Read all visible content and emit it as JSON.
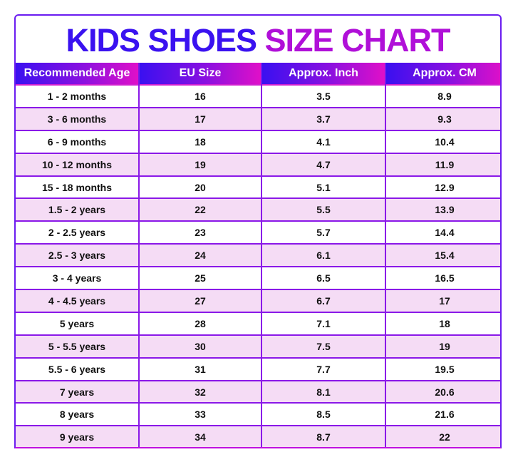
{
  "chart_data": {
    "type": "table",
    "title_part1": "KIDS SHOES",
    "title_part2": "SIZE CHART",
    "columns": [
      "Recommended Age",
      "EU Size",
      "Approx. Inch",
      "Approx. CM"
    ],
    "rows": [
      [
        "1 - 2 months",
        "16",
        "3.5",
        "8.9"
      ],
      [
        "3 - 6 months",
        "17",
        "3.7",
        "9.3"
      ],
      [
        "6 - 9 months",
        "18",
        "4.1",
        "10.4"
      ],
      [
        "10 - 12 months",
        "19",
        "4.7",
        "11.9"
      ],
      [
        "15 - 18 months",
        "20",
        "5.1",
        "12.9"
      ],
      [
        "1.5 - 2 years",
        "22",
        "5.5",
        "13.9"
      ],
      [
        "2 - 2.5 years",
        "23",
        "5.7",
        "14.4"
      ],
      [
        "2.5 - 3 years",
        "24",
        "6.1",
        "15.4"
      ],
      [
        "3 - 4 years",
        "25",
        "6.5",
        "16.5"
      ],
      [
        "4 - 4.5 years",
        "27",
        "6.7",
        "17"
      ],
      [
        "5 years",
        "28",
        "7.1",
        "18"
      ],
      [
        "5 - 5.5 years",
        "30",
        "7.5",
        "19"
      ],
      [
        "5.5 - 6 years",
        "31",
        "7.7",
        "19.5"
      ],
      [
        "7 years",
        "32",
        "8.1",
        "20.6"
      ],
      [
        "8 years",
        "33",
        "8.5",
        "21.6"
      ],
      [
        "9 years",
        "34",
        "8.7",
        "22"
      ]
    ],
    "colors": {
      "blue": "#3a12f0",
      "magenta": "#b010d8",
      "alt_row": "#f5dcf5"
    }
  }
}
